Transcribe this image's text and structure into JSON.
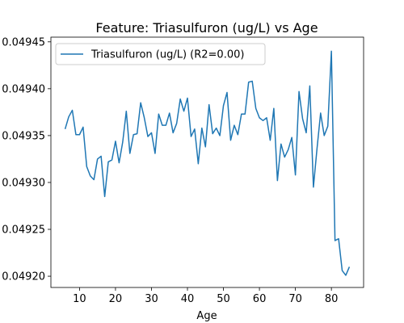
{
  "chart_data": {
    "type": "line",
    "title": "Feature: Triasulfuron (ug/L) vs Age",
    "xlabel": "Age",
    "ylabel": "",
    "xlim": [
      2.05,
      88.95
    ],
    "ylim": [
      0.049188,
      0.049455
    ],
    "xticks": [
      10,
      20,
      30,
      40,
      50,
      60,
      70,
      80
    ],
    "xtick_labels": [
      "10",
      "20",
      "30",
      "40",
      "50",
      "60",
      "70",
      "80"
    ],
    "yticks": [
      0.0492,
      0.04925,
      0.0493,
      0.04935,
      0.0494,
      0.04945
    ],
    "ytick_labels": [
      "0.04920",
      "0.04925",
      "0.04930",
      "0.04935",
      "0.04940",
      "0.04945"
    ],
    "grid": false,
    "legend": {
      "position": "upper-left"
    },
    "series": [
      {
        "name": "Triasulfuron (ug/L) (R2=0.00)",
        "color": "#1f77b4",
        "x": [
          6,
          7,
          8,
          9,
          10,
          11,
          12,
          13,
          14,
          15,
          16,
          17,
          18,
          19,
          20,
          21,
          22,
          23,
          24,
          25,
          26,
          27,
          28,
          29,
          30,
          31,
          32,
          33,
          34,
          35,
          36,
          37,
          38,
          39,
          40,
          41,
          42,
          43,
          44,
          45,
          46,
          47,
          48,
          49,
          50,
          51,
          52,
          53,
          54,
          55,
          56,
          57,
          58,
          59,
          60,
          61,
          62,
          63,
          64,
          65,
          66,
          67,
          68,
          69,
          70,
          71,
          72,
          73,
          74,
          75,
          76,
          77,
          78,
          79,
          80,
          81,
          82,
          83,
          84,
          85
        ],
        "y": [
          0.049357,
          0.04937,
          0.049377,
          0.049351,
          0.049351,
          0.049359,
          0.049317,
          0.049307,
          0.049303,
          0.049325,
          0.049328,
          0.049285,
          0.049322,
          0.049324,
          0.049344,
          0.049321,
          0.049343,
          0.049376,
          0.049331,
          0.049351,
          0.049352,
          0.049385,
          0.049369,
          0.049349,
          0.049353,
          0.049331,
          0.049373,
          0.049361,
          0.049361,
          0.049374,
          0.049353,
          0.049363,
          0.049389,
          0.049376,
          0.04939,
          0.049349,
          0.049357,
          0.04932,
          0.049358,
          0.049338,
          0.049383,
          0.049352,
          0.049358,
          0.04935,
          0.049382,
          0.049396,
          0.049345,
          0.049361,
          0.049351,
          0.049373,
          0.049373,
          0.049407,
          0.049408,
          0.049379,
          0.049369,
          0.049366,
          0.049369,
          0.049345,
          0.049379,
          0.049302,
          0.049341,
          0.049327,
          0.049335,
          0.049348,
          0.049308,
          0.049397,
          0.049368,
          0.049353,
          0.049403,
          0.049295,
          0.049336,
          0.049374,
          0.04935,
          0.04936,
          0.04944,
          0.049238,
          0.04924,
          0.049206,
          0.049201,
          0.04921
        ]
      }
    ]
  }
}
